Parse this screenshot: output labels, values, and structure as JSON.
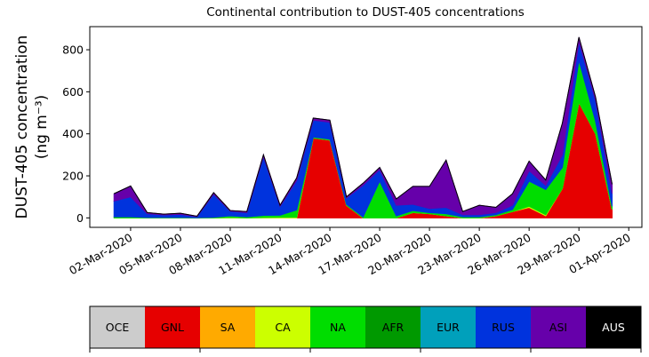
{
  "chart_data": {
    "type": "area",
    "stacked": true,
    "title": "Continental contribution to DUST-405 concentrations",
    "ylabel": "DUST-405 concentration",
    "ylabel_unit": "(ng m⁻³)",
    "x": [
      "2020-03-01",
      "2020-03-02",
      "2020-03-03",
      "2020-03-04",
      "2020-03-05",
      "2020-03-06",
      "2020-03-07",
      "2020-03-08",
      "2020-03-09",
      "2020-03-10",
      "2020-03-11",
      "2020-03-12",
      "2020-03-13",
      "2020-03-14",
      "2020-03-15",
      "2020-03-16",
      "2020-03-17",
      "2020-03-18",
      "2020-03-19",
      "2020-03-20",
      "2020-03-21",
      "2020-03-22",
      "2020-03-23",
      "2020-03-24",
      "2020-03-25",
      "2020-03-26",
      "2020-03-27",
      "2020-03-28",
      "2020-03-29",
      "2020-03-30",
      "2020-03-31"
    ],
    "xlim": [
      "2020-02-28T13:00:00Z",
      "2020-04-01T19:00:00Z"
    ],
    "xticks": [
      {
        "value": "2020-03-02",
        "label": "02-Mar-2020"
      },
      {
        "value": "2020-03-05",
        "label": "05-Mar-2020"
      },
      {
        "value": "2020-03-08",
        "label": "08-Mar-2020"
      },
      {
        "value": "2020-03-11",
        "label": "11-Mar-2020"
      },
      {
        "value": "2020-03-14",
        "label": "14-Mar-2020"
      },
      {
        "value": "2020-03-17",
        "label": "17-Mar-2020"
      },
      {
        "value": "2020-03-20",
        "label": "20-Mar-2020"
      },
      {
        "value": "2020-03-23",
        "label": "23-Mar-2020"
      },
      {
        "value": "2020-03-26",
        "label": "26-Mar-2020"
      },
      {
        "value": "2020-03-29",
        "label": "29-Mar-2020"
      },
      {
        "value": "2020-04-01",
        "label": "01-Apr-2020"
      }
    ],
    "ylim": [
      -45,
      910
    ],
    "yticks": [
      0,
      200,
      400,
      600,
      800
    ],
    "series": [
      {
        "name": "OCE",
        "color": "#cccccc",
        "values": [
          0,
          0,
          0,
          0,
          0,
          0,
          0,
          0,
          0,
          0,
          0,
          0,
          0,
          0,
          0,
          0,
          0,
          0,
          0,
          0,
          0,
          0,
          0,
          0,
          0,
          0,
          0,
          0,
          0,
          0,
          0
        ]
      },
      {
        "name": "GNL",
        "color": "#e60000",
        "values": [
          0,
          0,
          0,
          0,
          0,
          0,
          0,
          0,
          0,
          0,
          0,
          0,
          380,
          370,
          60,
          0,
          0,
          0,
          25,
          20,
          10,
          0,
          0,
          10,
          30,
          50,
          10,
          140,
          550,
          400,
          40
        ]
      },
      {
        "name": "SA",
        "color": "#ffaa00",
        "values": [
          0,
          0,
          0,
          0,
          0,
          0,
          0,
          0,
          0,
          0,
          0,
          0,
          0,
          0,
          0,
          0,
          0,
          0,
          0,
          0,
          0,
          0,
          0,
          0,
          0,
          0,
          0,
          0,
          0,
          0,
          0
        ]
      },
      {
        "name": "CA",
        "color": "#ccff00",
        "values": [
          0,
          0,
          0,
          0,
          0,
          0,
          0,
          2,
          0,
          2,
          3,
          3,
          0,
          0,
          0,
          0,
          0,
          0,
          0,
          0,
          0,
          0,
          0,
          0,
          0,
          5,
          5,
          0,
          0,
          0,
          0
        ]
      },
      {
        "name": "NA",
        "color": "#00dd00",
        "values": [
          5,
          5,
          2,
          2,
          2,
          1,
          3,
          8,
          5,
          10,
          10,
          35,
          5,
          5,
          5,
          5,
          175,
          10,
          10,
          5,
          10,
          5,
          5,
          5,
          10,
          120,
          120,
          100,
          200,
          60,
          15
        ]
      },
      {
        "name": "AFR",
        "color": "#009900",
        "values": [
          0,
          0,
          0,
          0,
          0,
          0,
          0,
          0,
          0,
          0,
          0,
          0,
          0,
          0,
          0,
          0,
          0,
          0,
          0,
          0,
          0,
          0,
          0,
          0,
          0,
          0,
          0,
          0,
          0,
          0,
          0
        ]
      },
      {
        "name": "EUR",
        "color": "#00a0bb",
        "values": [
          0,
          0,
          0,
          0,
          0,
          0,
          0,
          0,
          0,
          0,
          0,
          0,
          0,
          0,
          0,
          0,
          0,
          0,
          0,
          0,
          0,
          0,
          0,
          0,
          0,
          0,
          0,
          0,
          0,
          0,
          0
        ]
      },
      {
        "name": "RUS",
        "color": "#0033dd",
        "values": [
          75,
          95,
          18,
          12,
          15,
          5,
          110,
          22,
          20,
          280,
          42,
          140,
          80,
          80,
          30,
          150,
          55,
          50,
          30,
          20,
          30,
          10,
          10,
          10,
          20,
          50,
          20,
          60,
          90,
          100,
          60
        ]
      },
      {
        "name": "ASI",
        "color": "#6600aa",
        "values": [
          35,
          52,
          5,
          4,
          5,
          2,
          7,
          3,
          5,
          8,
          5,
          12,
          10,
          10,
          5,
          10,
          10,
          30,
          85,
          105,
          225,
          15,
          45,
          25,
          55,
          45,
          25,
          150,
          20,
          15,
          45
        ]
      },
      {
        "name": "AUS",
        "color": "#000000",
        "values": [
          0,
          0,
          0,
          0,
          0,
          0,
          0,
          0,
          0,
          0,
          0,
          0,
          0,
          0,
          0,
          0,
          0,
          0,
          0,
          0,
          0,
          0,
          0,
          0,
          0,
          0,
          0,
          0,
          0,
          0,
          0
        ]
      }
    ]
  }
}
